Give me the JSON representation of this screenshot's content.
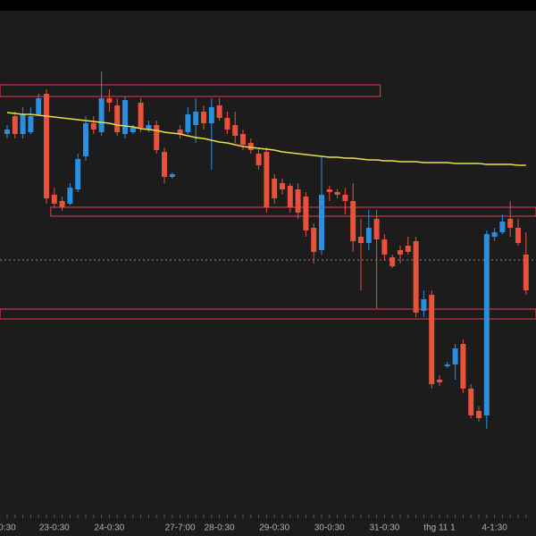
{
  "chart_data": {
    "type": "candlestick",
    "categories": [
      "0:30",
      null,
      null,
      null,
      null,
      null,
      "23-0:30",
      null,
      null,
      null,
      null,
      null,
      null,
      "24-0:30",
      null,
      null,
      null,
      null,
      null,
      null,
      null,
      null,
      "27-7:00",
      null,
      null,
      null,
      null,
      "28-0:30",
      null,
      null,
      null,
      null,
      null,
      null,
      "29-0:30",
      null,
      null,
      null,
      null,
      null,
      null,
      "30-0:30",
      null,
      null,
      null,
      null,
      null,
      null,
      "31-0:30",
      null,
      null,
      null,
      null,
      null,
      null,
      "thg 11 1",
      null,
      null,
      null,
      null,
      null,
      null,
      "4-1:30",
      null,
      null,
      null,
      null
    ],
    "open": [
      450,
      470,
      450,
      452,
      472,
      495,
      382,
      375,
      372,
      388,
      425,
      462,
      452,
      490,
      482,
      450,
      452,
      485,
      455,
      460,
      430,
      402,
      455,
      452,
      460,
      475,
      462,
      482,
      468,
      460,
      450,
      440,
      428,
      430,
      400,
      395,
      392,
      388,
      380,
      345,
      320,
      388,
      385,
      382,
      375,
      335,
      328,
      355,
      332,
      312,
      320,
      325,
      330,
      252,
      270,
      175,
      190,
      192,
      215,
      165,
      140,
      135,
      335,
      340,
      355,
      345,
      315
    ],
    "high": [
      460,
      475,
      480,
      480,
      495,
      500,
      390,
      380,
      395,
      428,
      470,
      470,
      520,
      500,
      490,
      492,
      460,
      490,
      465,
      465,
      435,
      407,
      460,
      480,
      490,
      482,
      490,
      490,
      475,
      475,
      455,
      445,
      435,
      435,
      405,
      400,
      395,
      395,
      385,
      350,
      425,
      392,
      388,
      390,
      395,
      355,
      365,
      365,
      338,
      315,
      325,
      335,
      335,
      275,
      275,
      180,
      195,
      215,
      220,
      170,
      145,
      342,
      345,
      360,
      375,
      355,
      340
    ],
    "low": [
      445,
      445,
      445,
      450,
      470,
      372,
      368,
      364,
      370,
      385,
      420,
      450,
      448,
      475,
      448,
      445,
      450,
      452,
      452,
      428,
      395,
      400,
      445,
      450,
      440,
      455,
      410,
      465,
      450,
      440,
      432,
      428,
      410,
      362,
      372,
      382,
      362,
      355,
      335,
      305,
      315,
      375,
      378,
      360,
      318,
      275,
      320,
      255,
      308,
      300,
      305,
      315,
      245,
      245,
      165,
      168,
      188,
      175,
      160,
      132,
      128,
      120,
      330,
      338,
      335,
      325,
      270
    ],
    "close": [
      455,
      450,
      472,
      470,
      490,
      378,
      372,
      368,
      390,
      422,
      462,
      455,
      490,
      485,
      452,
      488,
      457,
      457,
      460,
      432,
      402,
      405,
      450,
      472,
      475,
      462,
      480,
      468,
      455,
      448,
      438,
      432,
      415,
      368,
      378,
      388,
      368,
      362,
      342,
      318,
      382,
      385,
      382,
      375,
      330,
      328,
      345,
      332,
      315,
      302,
      315,
      318,
      250,
      265,
      170,
      172,
      192,
      210,
      165,
      135,
      132,
      338,
      340,
      352,
      345,
      328,
      275
    ],
    "up_color": "#2a8fe0",
    "down_color": "#e8513a",
    "ma": {
      "color": "#e8e04a",
      "values": [
        474,
        473,
        472,
        472,
        471,
        470,
        469,
        468,
        467,
        466,
        465,
        464,
        463,
        462,
        460,
        459,
        458,
        456,
        455,
        454,
        452,
        451,
        450,
        448,
        446,
        445,
        443,
        441,
        440,
        438,
        436,
        435,
        434,
        433,
        432,
        430,
        429,
        428,
        427,
        426,
        425,
        424,
        424,
        423,
        423,
        422,
        421,
        421,
        420,
        420,
        419,
        419,
        419,
        418,
        418,
        418,
        418,
        417,
        417,
        417,
        417,
        416,
        416,
        416,
        416,
        415,
        415
      ]
    },
    "zones": [
      {
        "low": 492,
        "high": 505,
        "from": 0,
        "to": 47
      },
      {
        "low": 358,
        "high": 368,
        "from": 6,
        "to": 66
      },
      {
        "low": 243,
        "high": 254,
        "from": 0,
        "to": 66
      }
    ],
    "zone_color": "#d0304a",
    "last_price": 309,
    "ylim": [
      0,
      600
    ]
  }
}
